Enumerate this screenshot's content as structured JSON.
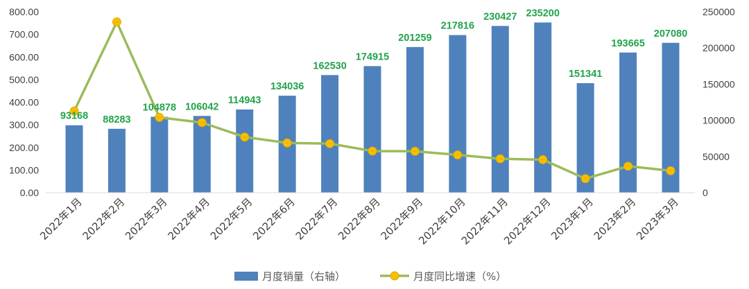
{
  "chart_data": {
    "type": "bar",
    "categories": [
      "2022年1月",
      "2022年2月",
      "2022年3月",
      "2022年4月",
      "2022年5月",
      "2022年6月",
      "2022年7月",
      "2022年8月",
      "2022年9月",
      "2022年10月",
      "2022年11月",
      "2022年12月",
      "2023年1月",
      "2023年2月",
      "2023年3月"
    ],
    "series": [
      {
        "name": "月度销量（右轴）",
        "type": "bar",
        "axis": "right",
        "color": "#4f81bd",
        "values": [
          93168,
          88283,
          104878,
          106042,
          114943,
          134036,
          162530,
          174915,
          201259,
          217816,
          230427,
          235200,
          151341,
          193665,
          207080
        ]
      },
      {
        "name": "月度同比增速（%）",
        "type": "line",
        "axis": "left",
        "color": "#9bbb59",
        "marker_color": "#f5c000",
        "values": [
          361,
          755,
          333,
          310,
          246,
          220,
          217,
          184,
          183,
          167,
          150,
          146,
          62,
          117,
          97
        ]
      }
    ],
    "left_axis": {
      "ylim": [
        0,
        800
      ],
      "ticks": [
        "0.00",
        "100.00",
        "200.00",
        "300.00",
        "400.00",
        "500.00",
        "600.00",
        "700.00",
        "800.00"
      ]
    },
    "right_axis": {
      "ylim": [
        0,
        250000
      ],
      "ticks": [
        "0",
        "50000",
        "100000",
        "150000",
        "200000",
        "250000"
      ]
    },
    "grid": false,
    "legend": "bottom-center"
  }
}
